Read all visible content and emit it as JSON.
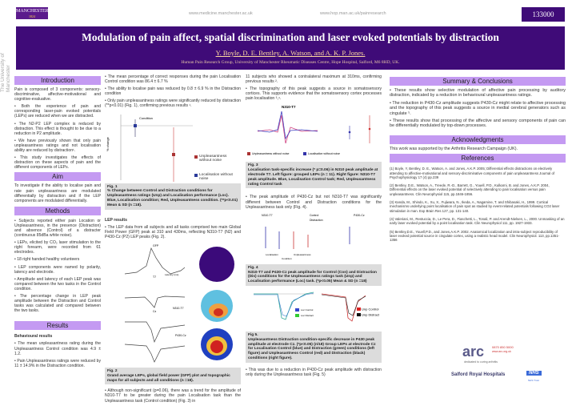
{
  "header": {
    "logo_text": "MANCHESTER",
    "logo_year": "1824",
    "url1": "www.medicine.manchester.ac.uk",
    "url2": "www.hop.man.ac.uk/painresearch",
    "poster_number": "133000",
    "university_side": "The University of Manchester"
  },
  "banner": {
    "title": "Modulation of pain affect, spatial discrimination and laser evoked potentials by distraction",
    "authors": "Y. Boyle, D. E.  Bentley, A. Watson, and A. K. P.  Jones.",
    "affiliation": "Human Pain Research Group, University of Manchester Rheumatic Diseases Centre, Hope Hospital, Salford, M6 8HD, UK."
  },
  "intro": {
    "heading": "Introduction",
    "paras": [
      "Pain is composed of 3 components: sensory-discriminative, affective-motivational and cognitive-evaluative.",
      "• Both the experience of pain and corresponding laser-pain evoked potentials (LEPs) are reduced when we are distracted.",
      "• The N2-P2 LEP complex is reduced by distraction. This effect is thought to be due to a reduction in P2 amplitude.",
      "• We have previously shown that only pain unpleasantness ratings and not localisation ability are reduced by distraction¹.",
      "• This study investigates the effects of distraction on these aspects of pain and the different components of LEPs."
    ]
  },
  "aim": {
    "heading": "Aim",
    "text": "To investigate if the ability to localise pain and rate pain unpleasantness are modulated differentially by distraction and if the LEP components are modulated differentially."
  },
  "methods": {
    "heading": "Methods",
    "paras": [
      "• Subjects reported either pain Location or Unpleasantness, in the presence (Distraction) and absence (Control) of a distracter (continuous 85dBa white noise).",
      "• LEPs, elicited by CO₂ laser stimulation to the right forearm, were recorded from 61 electrodes.",
      "• 18 right handed healthy volunteers",
      "• LEP components were named by polarity, latency and electrode.",
      "• Amplitude and latency of each LEP peak was compared between the two tasks in the Control condition.",
      "• The percentage change in LEP peak amplitude between the Distraction and Control tasks was calculated and compared between the two tasks."
    ]
  },
  "results": {
    "heading": "Results",
    "sub": "Behavioural results",
    "paras": [
      "• The mean unpleasantness rating during the Unpleasantness Control condition was 4.9 ± 1.2.",
      "• Pain Unpleasantness ratings were reduced by 11 ± 14.9% in the Distraction condition."
    ]
  },
  "col2": {
    "paras": [
      "• The mean percentage of correct responses during the pain Localisation Control condition was 86.4 ± 6.7 %",
      "• The ability to localise pain was reduced by 0.8 ± 6.9 % in the Distraction condition",
      "• Only pain unpleasantness ratings were significantly reduced by distraction (**p<0.01) (Fig. 1), confirming previous results ¹."
    ],
    "fig1": {
      "label": "Fig. 1",
      "caption": "% Change between Control and Distraction conditions for Unpleasantness ratings (Unp) and Localisation performance (Loc). Blue, Localisation condition; Red, Unpleasantness condition. (**p<0.01) Mean & SD (n =18).",
      "chart_title": "Condition",
      "ylabel": "% change",
      "legend": [
        "Unpleasantness without noise",
        "Localisation without noise"
      ]
    },
    "lep_heading": "LEP results",
    "lep_text": "• The LEP data from all subjects and all tasks comprised two main Global Field Power (GFP) peak at 310 and 430ms, reflecting N310-T7 (N2) and P430-Cz (P2) LEP peaks (Fig. 2).",
    "fig2": {
      "label": "Fig. 2",
      "caption": "Grand average LEPs, global field power (GFP) plot and topographic maps for all subjects and all conditions (n =18).",
      "labels": [
        "GFP",
        "T7",
        "N310-T7",
        "P430-Cz",
        "Cz",
        "Latency (ms)"
      ]
    },
    "after": "• Although non-significant (p=0.06), there was a trend for the amplitude of N310-T7 to be greater during the pain Localisation task than the Unpleasantness task (Control condition) (Fig. 3) in"
  },
  "col3": {
    "p1": "11 subjects who showed a contralateral maximum at 310ms, confirming previous results ².",
    "p2": "• The topography of this peak suggests a source in somatosensory cortices. This supports evidence that the somatosensory cortex processes pain localisation ³,⁴.",
    "fig3": {
      "label": "Fig. 3",
      "title": "N310-T7",
      "caption": "Localisation task-specific increase (* p=0.06) in N310 peak amplitude at electrode T7. Left figure: grouped LEPs (n = 11). Right figure: N310-T7 peak amplitude. Blue, Localisation Control task; Red, Unpleasantness rating Control task",
      "legend": [
        "Unpleasantness without noise",
        "Localisation without noise"
      ]
    },
    "p3": "• The peak amplitude of P430-Cz but not N310-T7 was significantly different between Control and Distraction conditions for the Unpleasantness task only (Fig. 4).",
    "fig4": {
      "label": "Fig. 4",
      "caption": "N310-T7 and P430-Cz peak amplitude for Control (Con) and Distraction (Dis) conditions for the Unpleasantness ratings task (Unp) and Localisation performance (Loc) task. (*p<0.05) Mean & SD (n =18)",
      "titles": [
        "N310-T7",
        "P430-Cz"
      ],
      "legend": [
        "Control",
        "Distraction"
      ],
      "xlabel": "Condition",
      "xticks": [
        "Localisation",
        "Unpleasantness"
      ]
    },
    "fig5": {
      "label": "Fig 5.",
      "caption": "Unpleasantness Distraction condition-specific decrease in P430 peak amplitude at electrode Cz. (*p<0.05) (n/18) Group LEPs at electrode Cz for Localisation Control (blue) and Distraction (green) conditions (left figure) and Unpleasantness Control (red) and Distraction (black) conditions (right figure).",
      "legend_left": [
        "Loc Control",
        "Loc Distract"
      ],
      "legend_right": [
        "Unp Control",
        "Unp Distract"
      ]
    },
    "p4": "• This was due to a reduction in P430-Cz peak amplitude with distraction only during the Unpleasantness task (Fig. 5)"
  },
  "summary": {
    "heading": "Summary & Conclusions",
    "paras": [
      "• These results show selective modulation of affective pain processing by auditory distraction, indicated by a reduction in behavioural unpleasantness ratings.",
      "• The reduction in P430-Cz amplitude suggests P430-Cz might relate to affective processing and the topography of this peak suggests a source in medial cerebral generators such as cingulate ⁵.",
      "• These results show that processing of the affective and sensory components of pain can be differentially modulated by top-down processes."
    ]
  },
  "ack": {
    "heading": "Acknowledgments",
    "text": "This work was supported by the Arthritis Research Campaign (UK)."
  },
  "refs": {
    "heading": "References",
    "items": [
      "(1)   Boyle, Y, Bentley, D. E., Watson, A. and Jones, A.K.P. 2005; Differential effects distractions on electively attending to affective-motivational and sensory-discriminative components of pain unpleasantness Journal of Psychophysiology 17 (4) pp.239",
      "(2)   Bentley, D.E., Watson, A., Treede, R.-D., Barrett, G., Youell, P.D., Kulkarni, B. and Jones, A.K.P. 2004, Differential effects on the laser evoked potential of selectively attending to pain localisation versus pain unpleasantness. Clin Neurophysiol 115, pp.1846-1856.",
      "(3)   Kanda, M., Shindo, K., Xu, X., Fujiwara, N., Ikeda, A., Nagamine, T. and Shibasaki, H., 1999. Cortical mechanisms underlying point localisation of pain spot as studied by event-related potentials following CO2 laser stimulation in man. Exp Brain Res 127, pp. 131-140.",
      "(4)   Valeriani, M., Restuccia, D., Le Pera, D., Fiaschetti, L., Tonali, P. and Arendt-Nielsen, L., 2000. Unmasking of an early laser evoked potential by a point localisation task. Clin Neurophysiol 111, pp. 1927-1933.",
      "(5)   Bentley,D.E., Youell,P.D., and Jones,A.K.P. 2002. Anatomical localization and intra-subject reproducibility of laser evoked potential source in cingulate cortex, using a realistic head model. Clin Neurophysiol. 113, pp.1351-1356"
    ]
  },
  "footer": {
    "arc_name": "arc",
    "arc_phone": "0870 850 5000",
    "arc_url": "www.arc.org.uk",
    "arc_tag": "dedicated to curing arthritis",
    "hosp": "Salford Royal Hospitals",
    "nhs": "NHS",
    "nhs_trust": "NHS Trust"
  },
  "colors": {
    "banner": "#3f0b78",
    "section_header": "#c49af2",
    "caption_bg": "#dcdcdc"
  }
}
